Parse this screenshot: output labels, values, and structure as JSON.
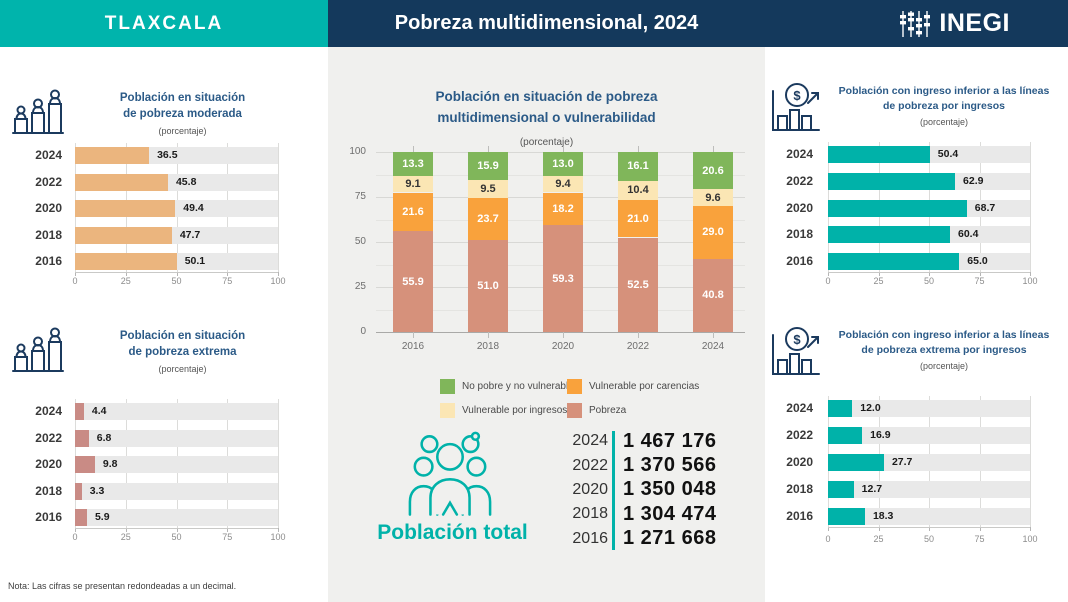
{
  "header": {
    "state": "TLAXCALA",
    "title": "Pobreza multidimensional, 2024",
    "logo_text": "INEGI",
    "teal": "#00B4AC",
    "navy": "#14395C"
  },
  "note": "Nota: Las cifras se presentan redondeadas a un decimal.",
  "population_total": {
    "label": "Población total",
    "rows": [
      {
        "year": "2024",
        "value": "1 467 176"
      },
      {
        "year": "2022",
        "value": "1 370 566"
      },
      {
        "year": "2020",
        "value": "1 350 048"
      },
      {
        "year": "2018",
        "value": "1 304 474"
      },
      {
        "year": "2016",
        "value": "1 271 668"
      }
    ]
  },
  "chart_data": [
    {
      "id": "moderada",
      "type": "bar",
      "orientation": "horizontal",
      "title_lines": [
        "Población en situación",
        "de pobreza moderada"
      ],
      "subtitle": "(porcentaje)",
      "categories": [
        "2024",
        "2022",
        "2020",
        "2018",
        "2016"
      ],
      "values": [
        36.5,
        45.8,
        49.4,
        47.7,
        50.1
      ],
      "xlim": [
        0,
        100
      ],
      "xticks": [
        0,
        25,
        50,
        75,
        100
      ],
      "bar_color": "#EBB57E"
    },
    {
      "id": "extrema",
      "type": "bar",
      "orientation": "horizontal",
      "title_lines": [
        "Población en situación",
        "de pobreza extrema"
      ],
      "subtitle": "(porcentaje)",
      "categories": [
        "2024",
        "2022",
        "2020",
        "2018",
        "2016"
      ],
      "values": [
        4.4,
        6.8,
        9.8,
        3.3,
        5.9
      ],
      "xlim": [
        0,
        100
      ],
      "xticks": [
        0,
        25,
        50,
        75,
        100
      ],
      "bar_color": "#C98B85"
    },
    {
      "id": "multidimensional",
      "type": "bar",
      "stacked": true,
      "orientation": "vertical",
      "title_lines": [
        "Población en situación de pobreza",
        "multidimensional o vulnerabilidad"
      ],
      "subtitle": "(porcentaje)",
      "categories": [
        "2016",
        "2018",
        "2020",
        "2022",
        "2024"
      ],
      "series": [
        {
          "name": "Pobreza",
          "color": "#D6917B",
          "label_color": "#FFFFFF",
          "values": [
            55.9,
            51.0,
            59.3,
            52.5,
            40.8
          ]
        },
        {
          "name": "Vulnerable por carencias",
          "color": "#F9A23C",
          "label_color": "#FFFFFF",
          "values": [
            21.6,
            23.7,
            18.2,
            21.0,
            29.0
          ]
        },
        {
          "name": "Vulnerable por ingresos",
          "color": "#FBE6B4",
          "label_color": "#333333",
          "values": [
            9.1,
            9.5,
            9.4,
            10.4,
            9.6
          ]
        },
        {
          "name": "No pobre y no vulnerable",
          "color": "#80B65A",
          "label_color": "#FFFFFF",
          "values": [
            13.3,
            15.9,
            13.0,
            16.1,
            20.6
          ]
        }
      ],
      "ylim": [
        0,
        100
      ],
      "yticks": [
        0,
        25,
        50,
        75,
        100
      ],
      "legend_order": [
        "No pobre y no vulnerable",
        "Vulnerable por carencias",
        "Vulnerable por ingresos",
        "Pobreza"
      ]
    },
    {
      "id": "lineas",
      "type": "bar",
      "orientation": "horizontal",
      "title_lines": [
        "Población con ingreso inferior a las líneas",
        "de pobreza por ingresos"
      ],
      "subtitle": "(porcentaje)",
      "categories": [
        "2024",
        "2022",
        "2020",
        "2018",
        "2016"
      ],
      "values": [
        50.4,
        62.9,
        68.7,
        60.4,
        65.0
      ],
      "xlim": [
        0,
        100
      ],
      "xticks": [
        0,
        25,
        50,
        75,
        100
      ],
      "bar_color": "#00B2A9"
    },
    {
      "id": "lineas-extrema",
      "type": "bar",
      "orientation": "horizontal",
      "title_lines": [
        "Población con ingreso inferior a las líneas",
        "de pobreza extrema por ingresos"
      ],
      "subtitle": "(porcentaje)",
      "categories": [
        "2024",
        "2022",
        "2020",
        "2018",
        "2016"
      ],
      "values": [
        12.0,
        16.9,
        27.7,
        12.7,
        18.3
      ],
      "xlim": [
        0,
        100
      ],
      "xticks": [
        0,
        25,
        50,
        75,
        100
      ],
      "bar_color": "#00B2A9"
    }
  ]
}
